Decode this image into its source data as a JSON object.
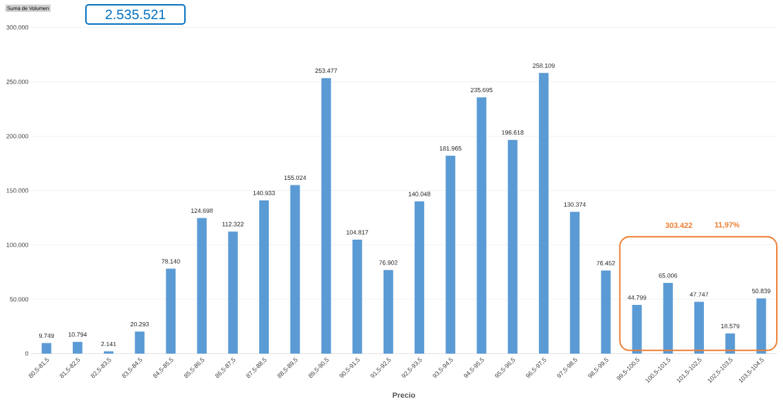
{
  "chart_data": {
    "type": "bar",
    "xlabel": "Precio",
    "categories": [
      "80,5-81,5",
      "81,5-82,5",
      "82,5-83,5",
      "83,5-84,5",
      "84,5-85,5",
      "85,5-86,5",
      "86,5-87,5",
      "87,5-88,5",
      "88,5-89,5",
      "89,5-90,5",
      "90,5-91,5",
      "91,5-92,5",
      "92,5-93,5",
      "93,5-94,5",
      "94,5-95,5",
      "95,5-96,5",
      "96,5-97,5",
      "97,5-98,5",
      "98,5-99,5",
      "99,5-100,5",
      "100,5-101,5",
      "101,5-102,5",
      "102,5-103,5",
      "103,5-104,5"
    ],
    "values": [
      9749,
      10794,
      2141,
      20293,
      78140,
      124698,
      112322,
      140933,
      155024,
      253477,
      104817,
      76902,
      140048,
      181965,
      235695,
      196618,
      258109,
      130374,
      76452,
      44799,
      65006,
      47747,
      18579,
      50839
    ],
    "value_labels": [
      "9.749",
      "10.794",
      "2.141",
      "20.293",
      "78.140",
      "124.698",
      "112.322",
      "140.933",
      "155.024",
      "253.477",
      "104.817",
      "76.902",
      "140.048",
      "181.965",
      "235.695",
      "196.618",
      "258.109",
      "130.374",
      "76.452",
      "44.799",
      "65.006",
      "47.747",
      "18.579",
      "50.839"
    ],
    "color": "#5b9bd5",
    "ylim": [
      0,
      300000
    ],
    "yticks": [
      {
        "value": 0,
        "label": "0"
      },
      {
        "value": 50000,
        "label": "50.000"
      },
      {
        "value": 100000,
        "label": "100.000"
      },
      {
        "value": 150000,
        "label": "150.000"
      },
      {
        "value": 200000,
        "label": "200.000"
      },
      {
        "value": 250000,
        "label": "250.000"
      },
      {
        "value": 300000,
        "label": "300.000"
      }
    ],
    "grid": "y",
    "annotations": [
      "Suma de Volumen",
      "2.535.521",
      "303.422",
      "11,97%"
    ]
  }
}
